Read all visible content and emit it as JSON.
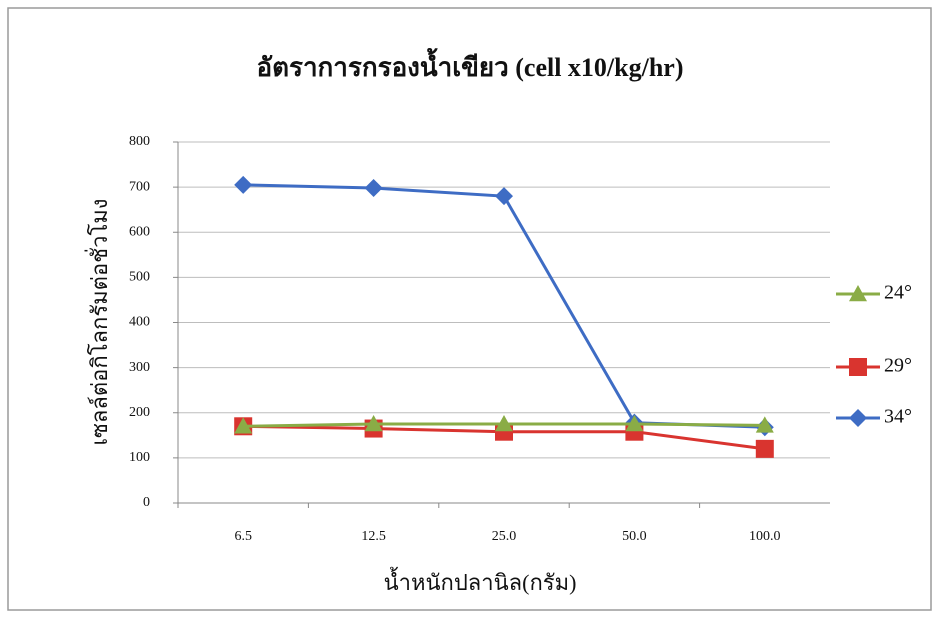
{
  "chart_data": {
    "type": "line",
    "title": "อัตราการกรองน้ำเขียว (cell x10/kg/hr)",
    "x_label": "น้ำหนักปลานิล(กรัม)",
    "y_label": "เซลล์ต่อกิโลกรัมต่อชั่วโมง",
    "categories": [
      "6.5",
      "12.5",
      "25.0",
      "50.0",
      "100.0"
    ],
    "series": [
      {
        "name": "24°",
        "color": "#8aac46",
        "marker": "triangle",
        "values": [
          170,
          175,
          175,
          175,
          172
        ]
      },
      {
        "name": "29°",
        "color": "#d9342f",
        "marker": "square",
        "values": [
          170,
          165,
          158,
          158,
          120
        ]
      },
      {
        "name": "34°",
        "color": "#3e6cc4",
        "marker": "diamond",
        "values": [
          705,
          698,
          680,
          178,
          168
        ]
      }
    ],
    "ylim": [
      0,
      800
    ],
    "yticks": [
      0,
      100,
      200,
      300,
      400,
      500,
      600,
      700,
      800
    ],
    "grid": true,
    "legend": "right"
  }
}
